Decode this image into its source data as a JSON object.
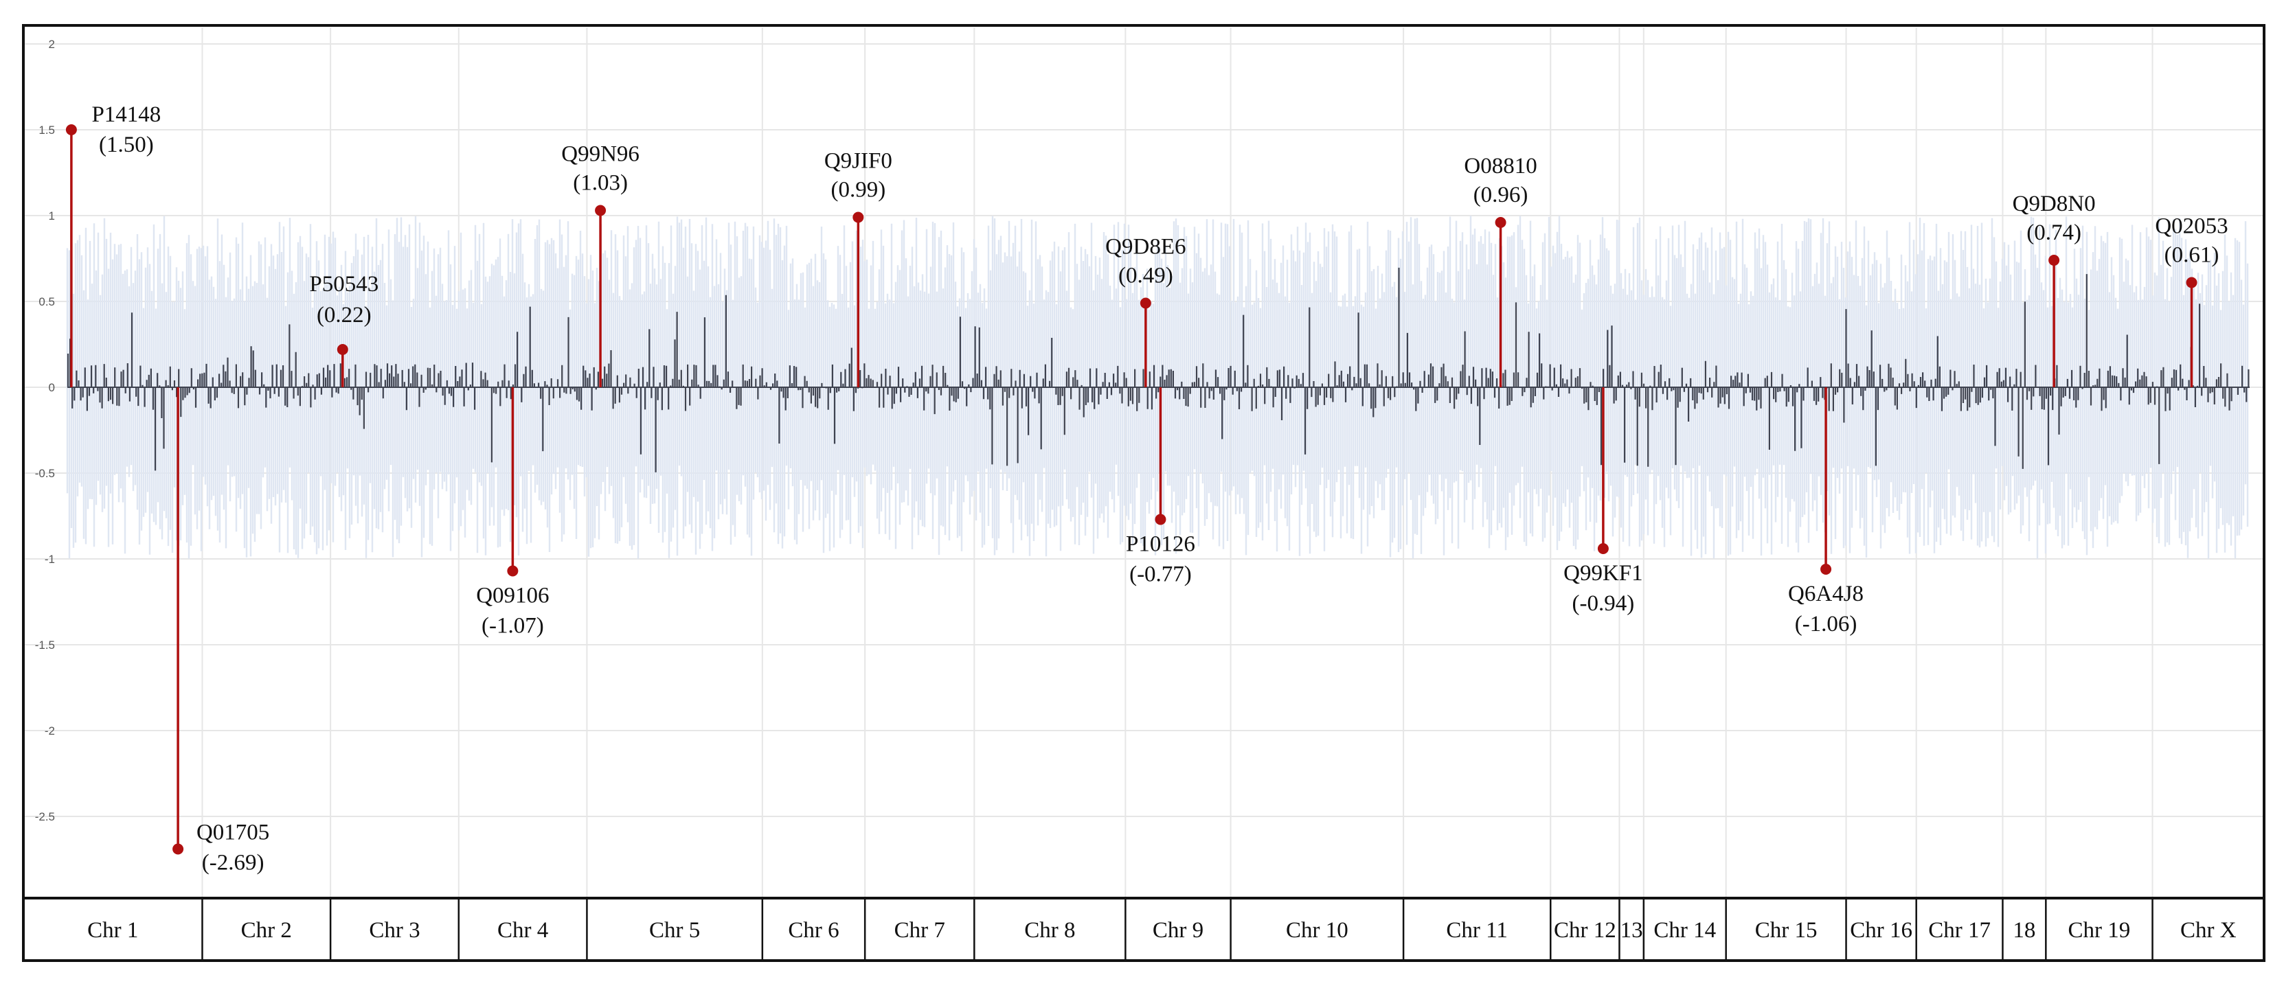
{
  "chart_data": {
    "type": "bar",
    "title": "",
    "xlabel": "",
    "ylabel": "",
    "ylim": [
      -3,
      2
    ],
    "y_ticks": [
      2,
      1.5,
      1,
      0.5,
      0,
      -0.5,
      -1,
      -1.5,
      -2,
      -2.5
    ],
    "y_tick_labels": [
      "2",
      "1.5",
      "1",
      "0.5",
      "0",
      "-0.5",
      "-1",
      "-1.5",
      "-2",
      "-2.5"
    ],
    "background_band": [
      -1,
      1
    ],
    "chromosomes": [
      {
        "label": "Chr 1",
        "start": 0,
        "end": 100
      },
      {
        "label": "Chr 2",
        "start": 100,
        "end": 195
      },
      {
        "label": "Chr 3",
        "start": 195,
        "end": 290
      },
      {
        "label": "Chr 4",
        "start": 290,
        "end": 385
      },
      {
        "label": "Chr 5",
        "start": 385,
        "end": 515
      },
      {
        "label": "Chr 6",
        "start": 515,
        "end": 591
      },
      {
        "label": "Chr 7",
        "start": 591,
        "end": 672
      },
      {
        "label": "Chr 8",
        "start": 672,
        "end": 784
      },
      {
        "label": "Chr 9",
        "start": 784,
        "end": 862
      },
      {
        "label": "Chr 10",
        "start": 862,
        "end": 990
      },
      {
        "label": "Chr 11",
        "start": 990,
        "end": 1099
      },
      {
        "label": "Chr 12",
        "start": 1099,
        "end": 1150
      },
      {
        "label": "13",
        "start": 1150,
        "end": 1168
      },
      {
        "label": "Chr 14",
        "start": 1168,
        "end": 1229
      },
      {
        "label": "Chr 15",
        "start": 1229,
        "end": 1318
      },
      {
        "label": "Chr 16",
        "start": 1318,
        "end": 1370
      },
      {
        "label": "Chr 17",
        "start": 1370,
        "end": 1434
      },
      {
        "label": "18",
        "start": 1434,
        "end": 1466
      },
      {
        "label": "Chr 19",
        "start": 1466,
        "end": 1545
      },
      {
        "label": "Chr X",
        "start": 1545,
        "end": 1617
      }
    ],
    "highlighted": [
      {
        "name": "P14148",
        "value": 1.5,
        "value_label": "(1.50)",
        "position": 3,
        "label_side": "right"
      },
      {
        "name": "Q01705",
        "value": -2.69,
        "value_label": "(-2.69)",
        "position": 82,
        "label_side": "right"
      },
      {
        "name": "P50543",
        "value": 0.22,
        "value_label": "(0.22)",
        "position": 204,
        "label_side": "above"
      },
      {
        "name": "Q09106",
        "value": -1.07,
        "value_label": "(-1.07)",
        "position": 330,
        "label_side": "below"
      },
      {
        "name": "Q99N96",
        "value": 1.03,
        "value_label": "(1.03)",
        "position": 395,
        "label_side": "above"
      },
      {
        "name": "Q9JIF0",
        "value": 0.99,
        "value_label": "(0.99)",
        "position": 586,
        "label_side": "above"
      },
      {
        "name": "Q9D8E6",
        "value": 0.49,
        "value_label": "(0.49)",
        "position": 799,
        "label_side": "above"
      },
      {
        "name": "P10126",
        "value": -0.77,
        "value_label": "(-0.77)",
        "position": 810,
        "label_side": "below"
      },
      {
        "name": "O08810",
        "value": 0.96,
        "value_label": "(0.96)",
        "position": 1062,
        "label_side": "above"
      },
      {
        "name": "Q99KF1",
        "value": -0.94,
        "value_label": "(-0.94)",
        "position": 1138,
        "label_side": "below"
      },
      {
        "name": "Q6A4J8",
        "value": -1.06,
        "value_label": "(-1.06)",
        "position": 1303,
        "label_side": "below"
      },
      {
        "name": "Q9D8N0",
        "value": 0.74,
        "value_label": "(0.74)",
        "position": 1472,
        "label_side": "above"
      },
      {
        "name": "Q02053",
        "value": 0.61,
        "value_label": "(0.61)",
        "position": 1574,
        "label_side": "above"
      }
    ],
    "background_series_note": "dense small bars (dark gray) per protein along genome, mostly between -0.6 and 0.6"
  },
  "colors": {
    "bar": "#3f4350",
    "band": "#dfe6f2",
    "highlight": "#b01010",
    "grid": "#e6e6e6",
    "frame": "#111111"
  }
}
